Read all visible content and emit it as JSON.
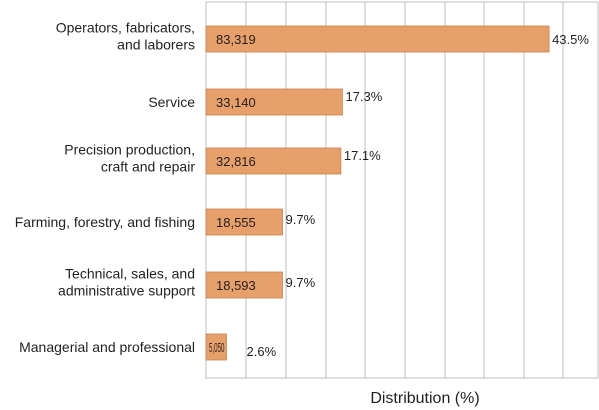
{
  "chart_data": {
    "type": "bar",
    "orientation": "horizontal",
    "categories": [
      [
        "Operators, fabricators,",
        "and laborers"
      ],
      [
        "Service"
      ],
      [
        "Precision production,",
        "craft and repair"
      ],
      [
        "Farming, forestry, and fishing"
      ],
      [
        "Technical, sales, and",
        "administrative support"
      ],
      [
        "Managerial and professional"
      ]
    ],
    "series": [
      {
        "values": [
          43.5,
          17.3,
          17.1,
          9.7,
          9.7,
          2.6
        ],
        "counts": [
          "83,319",
          "33,140",
          "32,816",
          "18,555",
          "18,593",
          "5,050"
        ],
        "percent_labels": [
          "43.5%",
          "17.3%",
          "17.1%",
          "9.7%",
          "9.7%",
          "2.6%"
        ]
      }
    ],
    "xlabel": "Distribution (%)",
    "xlim": [
      0,
      50
    ],
    "grid": "vertical",
    "bar_color": "#e8a06a",
    "bar_edge_color": "#c9834e"
  }
}
